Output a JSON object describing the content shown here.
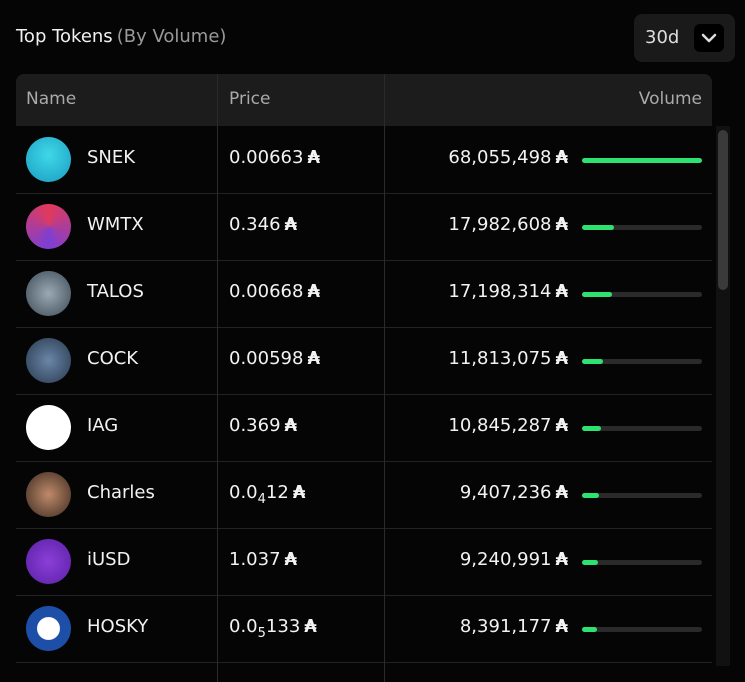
{
  "header": {
    "title": "Top Tokens",
    "subtitle": "(By Volume)",
    "period": "30d"
  },
  "table": {
    "columns": [
      "Name",
      "Price",
      "Volume"
    ],
    "currency": "₳",
    "rows": [
      {
        "name": "SNEK",
        "price": "0.00663",
        "volume": "68,055,498"
      },
      {
        "name": "WMTX",
        "price": "0.346",
        "volume": "17,982,608"
      },
      {
        "name": "TALOS",
        "price": "0.00668",
        "volume": "17,198,314"
      },
      {
        "name": "COCK",
        "price": "0.00598",
        "volume": "11,813,075"
      },
      {
        "name": "IAG",
        "price": "0.369",
        "volume": "10,845,287"
      },
      {
        "name": "Charles",
        "price": {
          "lead": "0.0",
          "sub": "4",
          "rest": "12"
        },
        "volume": "9,407,236"
      },
      {
        "name": "iUSD",
        "price": "1.037",
        "volume": "9,240,991"
      },
      {
        "name": "HOSKY",
        "price": {
          "lead": "0.0",
          "sub": "5",
          "rest": "133"
        },
        "volume": "8,391,177"
      }
    ]
  }
}
